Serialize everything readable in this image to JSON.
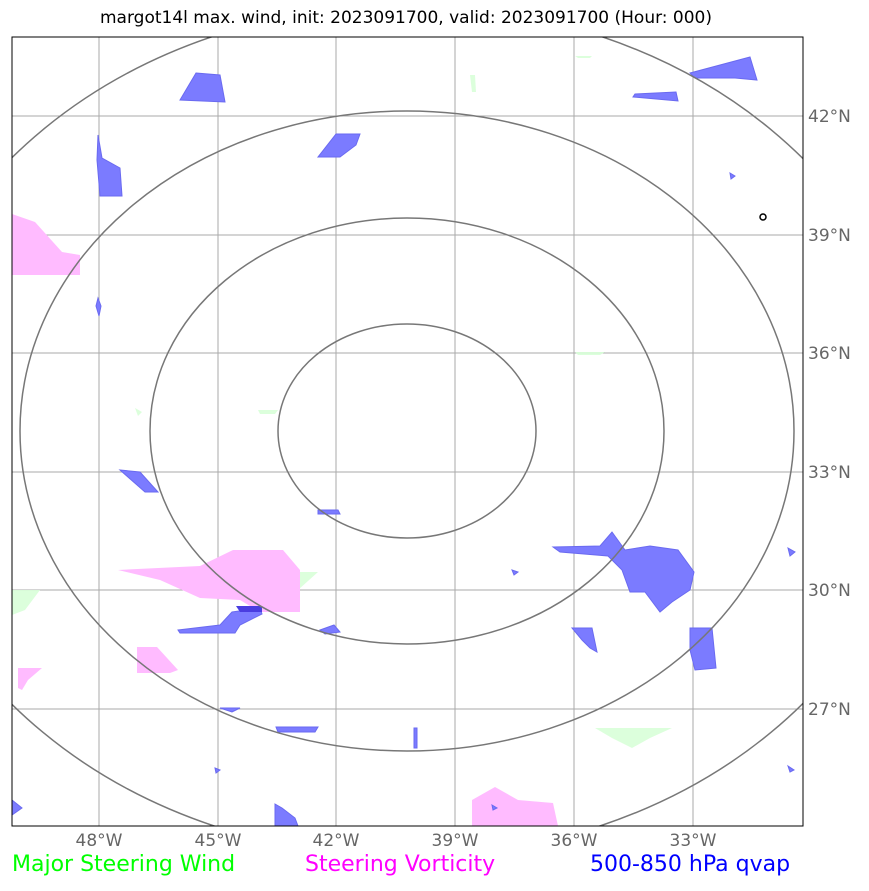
{
  "title": "margot14l max. wind, init: 2023091700, valid: 2023091700 (Hour: 000)",
  "lon_ticks": [
    "48°W",
    "45°W",
    "42°W",
    "39°W",
    "36°W",
    "33°W"
  ],
  "lat_ticks": [
    "42°N",
    "39°N",
    "36°N",
    "33°N",
    "30°N",
    "27°N"
  ],
  "legend": {
    "wind": {
      "label": "Major Steering Wind",
      "color": "#00ff00"
    },
    "vorticity": {
      "label": "Steering Vorticity",
      "color": "#ff00ff"
    },
    "qvap": {
      "label": "500-850 hPa qvap",
      "color": "#0000ff"
    }
  },
  "colors": {
    "qvap_fill": "#7b7bff",
    "qvap_dense": "#4a3de0",
    "vort_fill": "#ffbbff",
    "wind_fill": "#d8ffd8",
    "range_ring": "#777777",
    "gridline": "#aaaaaa"
  },
  "map": {
    "extent_lon": [
      "50°W",
      "30°W"
    ],
    "extent_lat": [
      "24°N",
      "44°N"
    ],
    "range_rings": 4
  }
}
